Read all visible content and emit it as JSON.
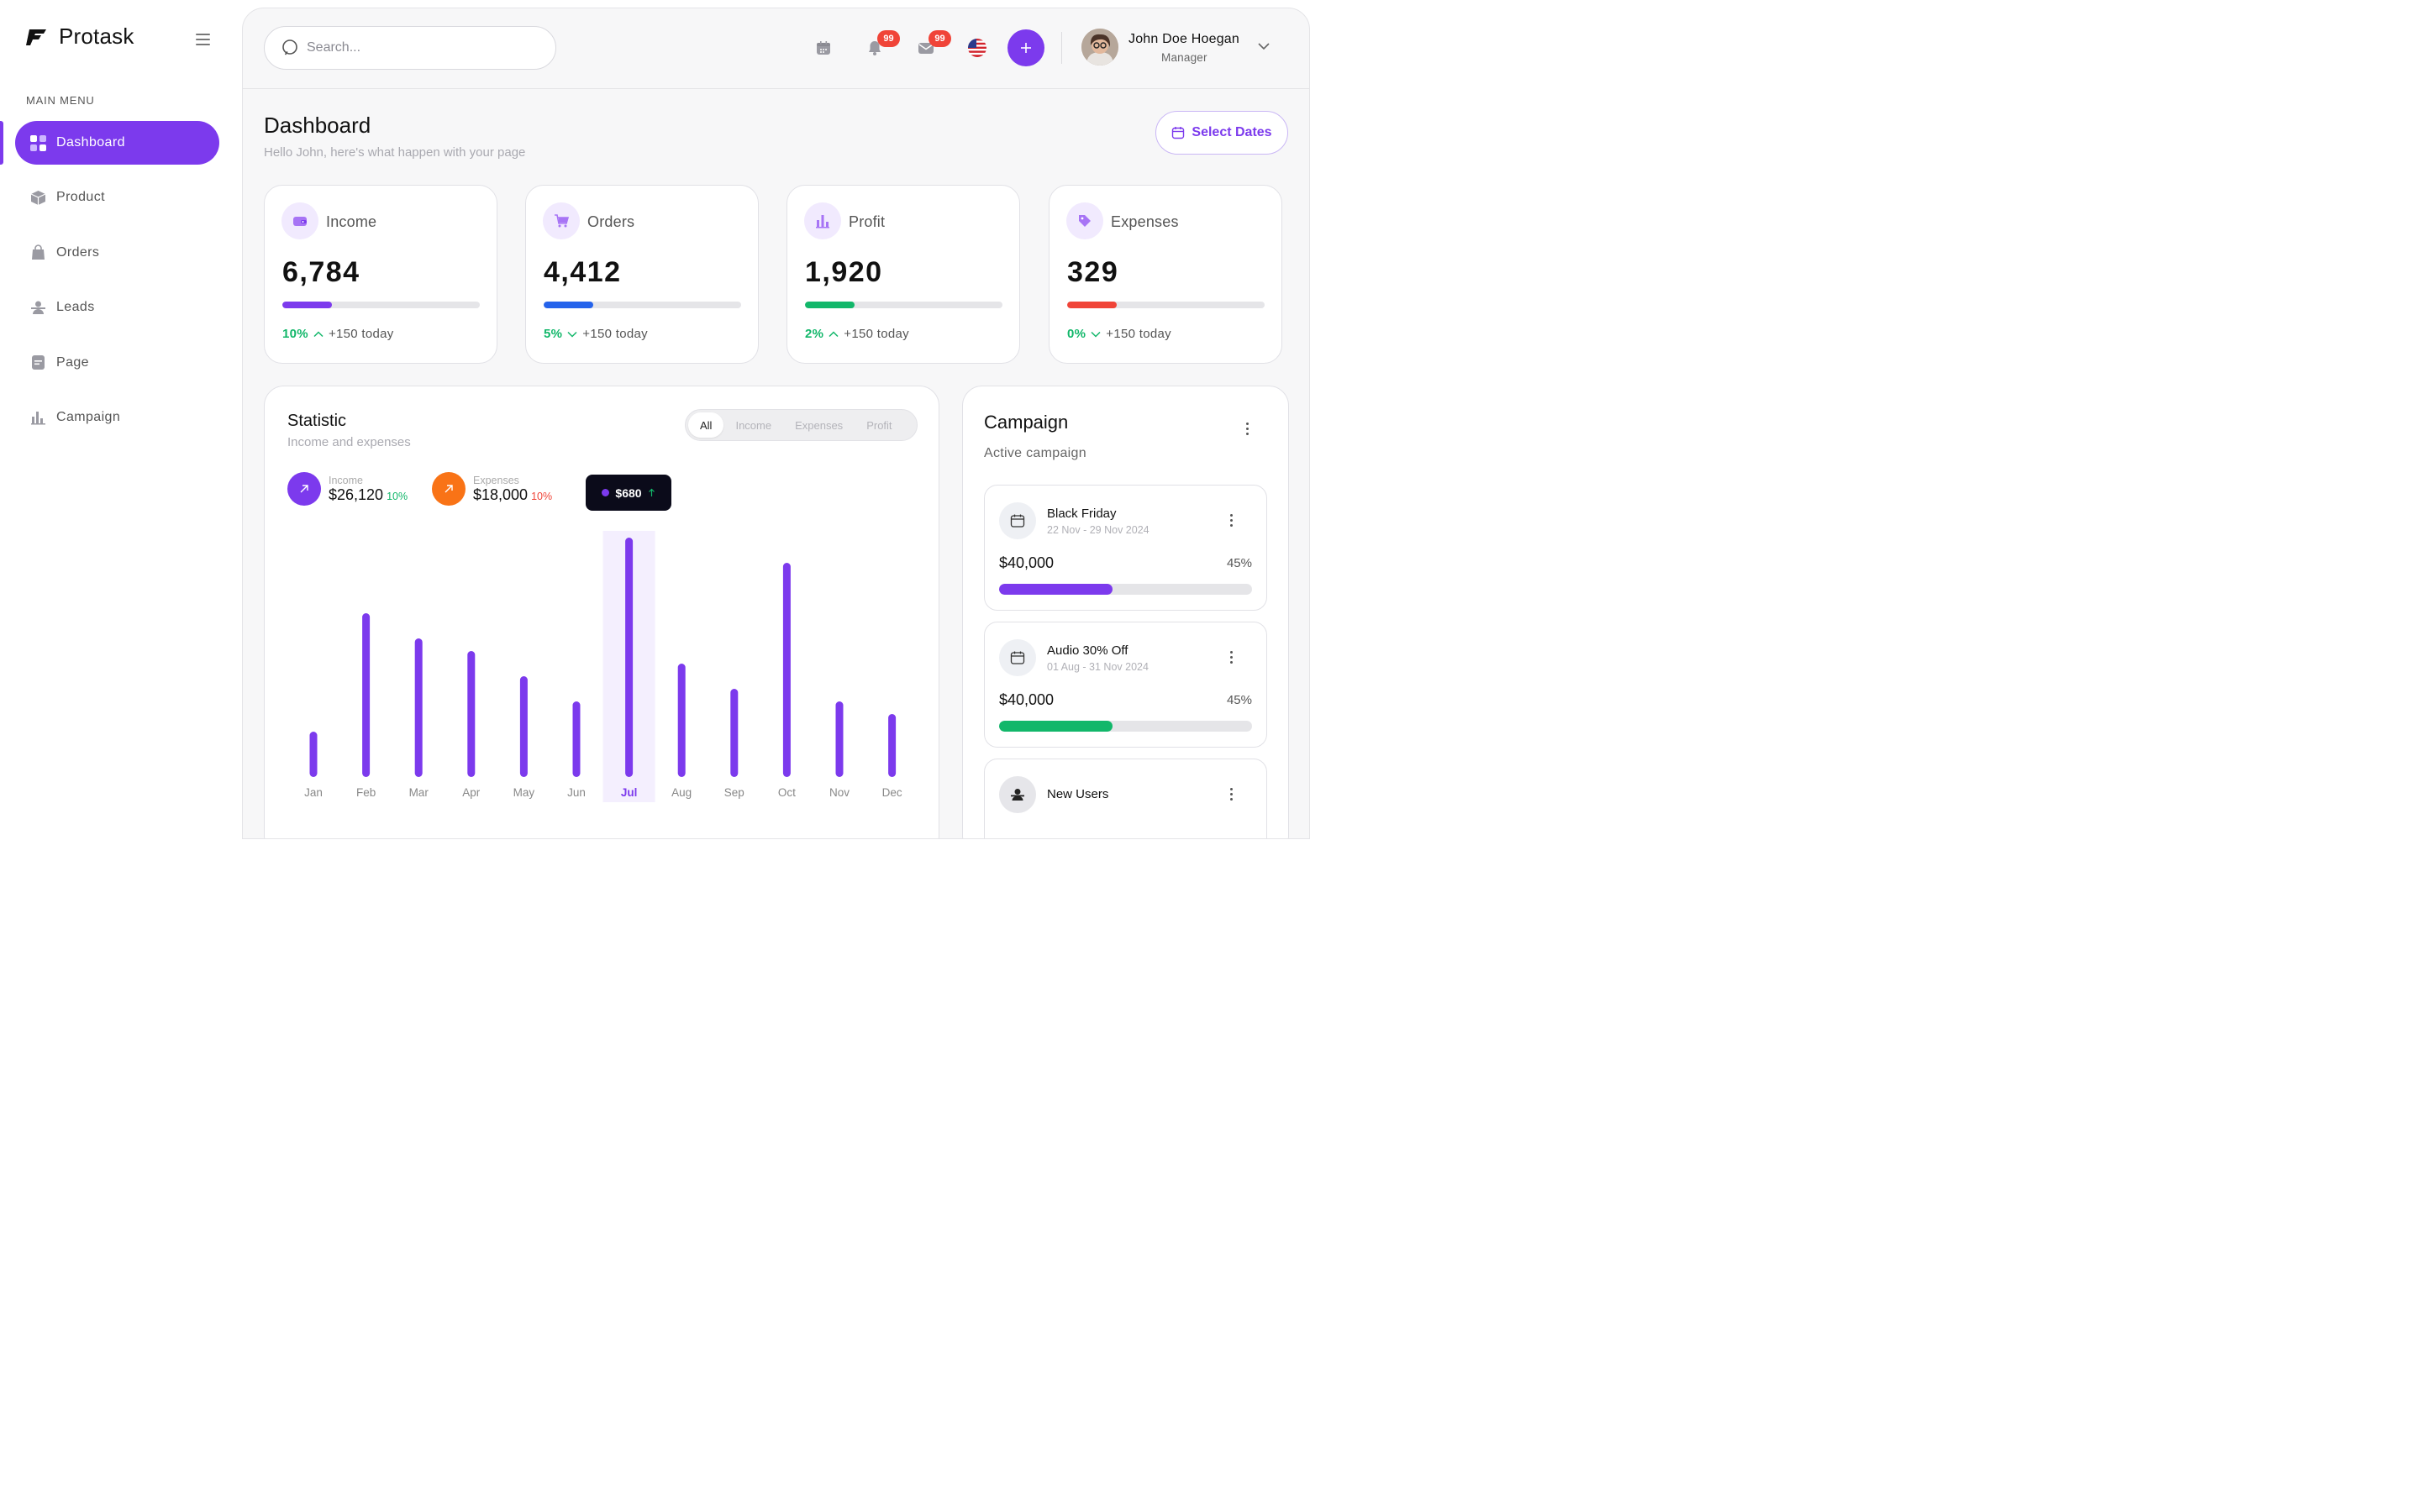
{
  "brand": {
    "name": "Protask"
  },
  "sidebar": {
    "heading": "MAIN MENU",
    "items": [
      {
        "label": "Dashboard",
        "icon": "dashboard-icon",
        "active": true
      },
      {
        "label": "Product",
        "icon": "box-icon"
      },
      {
        "label": "Orders",
        "icon": "bag-icon"
      },
      {
        "label": "Leads",
        "icon": "users-icon"
      },
      {
        "label": "Page",
        "icon": "page-icon"
      },
      {
        "label": "Campaign",
        "icon": "bar-chart-icon"
      }
    ]
  },
  "topbar": {
    "search_placeholder": "Search...",
    "notifications_count": "99",
    "messages_count": "99",
    "user_name": "John Doe Hoegan",
    "user_role": "Manager"
  },
  "header": {
    "title": "Dashboard",
    "subtitle": "Hello John, here's what happen with your page",
    "select_dates": "Select Dates"
  },
  "stats": [
    {
      "label": "Income",
      "value": "6,784",
      "pct": "10%",
      "trend": "up",
      "today": "+150 today",
      "progress": 0.25,
      "color": "#7C3AED",
      "icon": "wallet-icon"
    },
    {
      "label": "Orders",
      "value": "4,412",
      "pct": "5%",
      "trend": "down",
      "today": "+150 today",
      "progress": 0.25,
      "color": "#2563EB",
      "icon": "cart-icon"
    },
    {
      "label": "Profit",
      "value": "1,920",
      "pct": "2%",
      "trend": "up",
      "today": "+150 today",
      "progress": 0.25,
      "color": "#12B76A",
      "icon": "chart-icon"
    },
    {
      "label": "Expenses",
      "value": "329",
      "pct": "0%",
      "trend": "down",
      "today": "+150 today",
      "progress": 0.25,
      "color": "#F04438",
      "icon": "tag-icon"
    }
  ],
  "statistic": {
    "title": "Statistic",
    "subtitle": "Income and expenses",
    "tabs": [
      "All",
      "Income",
      "Expenses",
      "Profit"
    ],
    "income_label": "Income",
    "income_value": "$26,120",
    "income_pct": "10%",
    "expenses_label": "Expenses",
    "expenses_value": "$18,000",
    "expenses_pct": "10%",
    "tooltip_value": "$680",
    "colors": {
      "income": "#7C3AED",
      "expenses": "#F97316",
      "bar": "#7C3AED"
    }
  },
  "chart_data": {
    "type": "bar",
    "categories": [
      "Jan",
      "Feb",
      "Mar",
      "Apr",
      "May",
      "Jun",
      "Jul",
      "Aug",
      "Sep",
      "Oct",
      "Nov",
      "Dec"
    ],
    "values": [
      180,
      650,
      550,
      500,
      400,
      300,
      950,
      450,
      350,
      850,
      300,
      250
    ],
    "highlight": "Jul",
    "ylim": [
      0,
      1000
    ],
    "grid": false
  },
  "campaign": {
    "title": "Campaign",
    "subtitle": "Active campaign",
    "items": [
      {
        "name": "Black Friday",
        "dates": "22 Nov - 29 Nov 2024",
        "amount": "$40,000",
        "pct": "45%",
        "progress": 0.45,
        "color": "#7C3AED",
        "icon": "calendar-icon"
      },
      {
        "name": "Audio 30% Off",
        "dates": "01 Aug - 31 Nov 2024",
        "amount": "$40,000",
        "pct": "45%",
        "progress": 0.45,
        "color": "#12B76A",
        "icon": "calendar-icon"
      },
      {
        "name": "New Users",
        "dates": "",
        "amount": "",
        "pct": "",
        "progress": 0,
        "color": "#7C3AED",
        "icon": "user-icon"
      }
    ]
  }
}
